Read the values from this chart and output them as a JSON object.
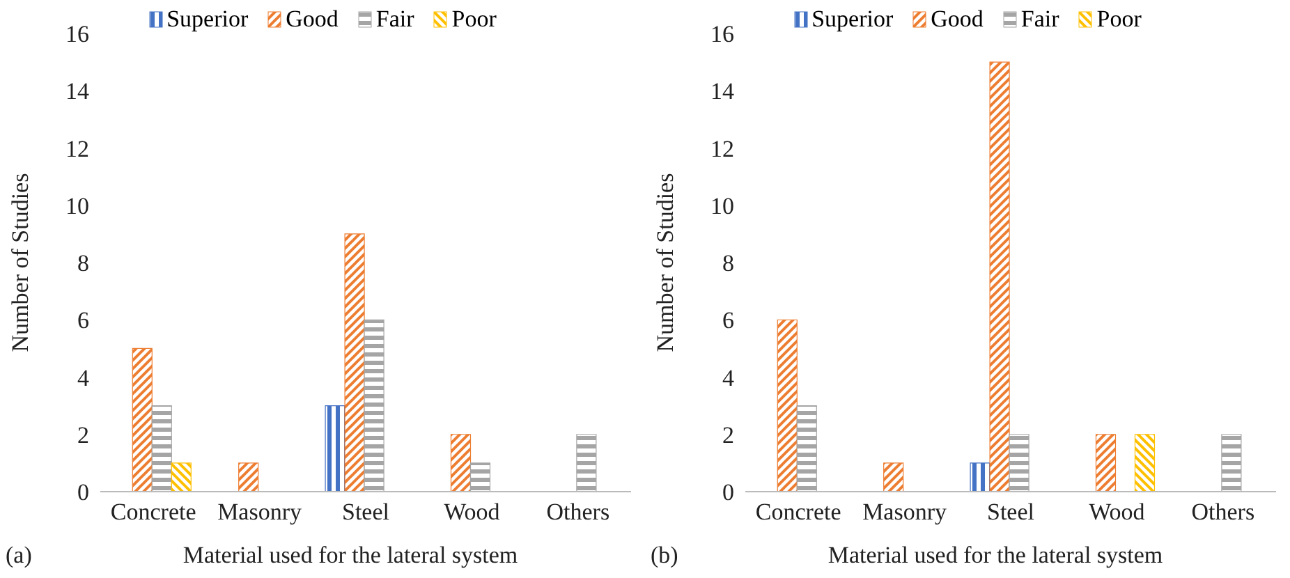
{
  "chart_data": [
    {
      "type": "bar",
      "categories": [
        "Concrete",
        "Masonry",
        "Steel",
        "Wood",
        "Others"
      ],
      "xlabel": "Material used for the lateral system",
      "ylabel": "Number of Studies",
      "ylim": [
        0,
        16
      ],
      "yticks": [
        0,
        2,
        4,
        6,
        8,
        10,
        12,
        14,
        16
      ],
      "grid": false,
      "legend": "top",
      "annotations": [
        "(a)"
      ],
      "series": [
        {
          "name": "Superior",
          "color": "#4472c4",
          "values": [
            0,
            0,
            3,
            0,
            0
          ]
        },
        {
          "name": "Good",
          "color": "#ed7d31",
          "values": [
            5,
            1,
            9,
            2,
            0
          ]
        },
        {
          "name": "Fair",
          "color": "#a5a5a5",
          "values": [
            3,
            0,
            6,
            1,
            2
          ]
        },
        {
          "name": "Poor",
          "color": "#ffc000",
          "values": [
            1,
            0,
            0,
            0,
            0
          ]
        }
      ]
    },
    {
      "type": "bar",
      "categories": [
        "Concrete",
        "Masonry",
        "Steel",
        "Wood",
        "Others"
      ],
      "xlabel": "Material used for the lateral system",
      "ylabel": "Number of Studies",
      "ylim": [
        0,
        16
      ],
      "yticks": [
        0,
        2,
        4,
        6,
        8,
        10,
        12,
        14,
        16
      ],
      "grid": false,
      "legend": "top",
      "annotations": [
        "(b)"
      ],
      "series": [
        {
          "name": "Superior",
          "color": "#4472c4",
          "values": [
            0,
            0,
            1,
            0,
            0
          ]
        },
        {
          "name": "Good",
          "color": "#ed7d31",
          "values": [
            6,
            1,
            15,
            2,
            0
          ]
        },
        {
          "name": "Fair",
          "color": "#a5a5a5",
          "values": [
            3,
            0,
            2,
            0,
            2
          ]
        },
        {
          "name": "Poor",
          "color": "#ffc000",
          "values": [
            0,
            0,
            0,
            2,
            0
          ]
        }
      ]
    }
  ]
}
